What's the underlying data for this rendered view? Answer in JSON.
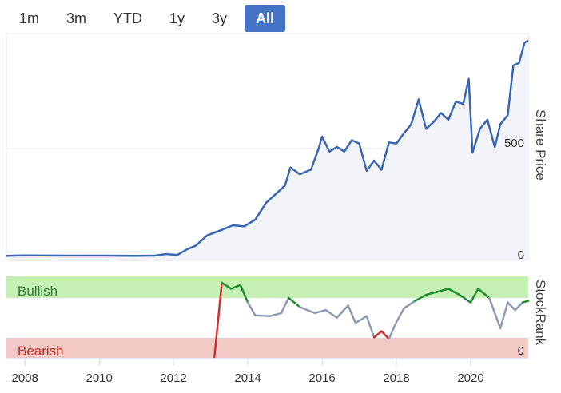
{
  "range_selector": {
    "buttons": [
      "1m",
      "3m",
      "YTD",
      "1y",
      "3y",
      "All"
    ],
    "active": "All"
  },
  "price_chart": {
    "axis_title": "Share Price",
    "ytick_labels": [
      "0",
      "500"
    ],
    "line_color": "#3a66b5",
    "fill_color": "#f3f4fa"
  },
  "rank_chart": {
    "axis_title": "StockRank",
    "bullish_label": "Bullish",
    "bearish_label": "Bearish",
    "ytick_label": "0",
    "bullish_color": "#c6efb4",
    "bearish_color": "#f2c9c5",
    "bull_line_color": "#1f8f2e",
    "neutral_line_color": "#8c9bb5",
    "bear_line_color": "#d32f2f"
  },
  "x_axis": {
    "tick_labels": [
      "2008",
      "2010",
      "2012",
      "2014",
      "2016",
      "2018",
      "2020"
    ]
  },
  "chart_data": [
    {
      "type": "line",
      "ylabel": "Share Price",
      "xlim": [
        2007.5,
        2021.55
      ],
      "ylim": [
        0,
        1000
      ],
      "series": [
        {
          "points": [
            [
              2007.5,
              20
            ],
            [
              2008.0,
              22
            ],
            [
              2009.0,
              21
            ],
            [
              2010.0,
              21
            ],
            [
              2011.0,
              20
            ],
            [
              2011.5,
              21
            ],
            [
              2011.8,
              28
            ],
            [
              2012.1,
              24
            ],
            [
              2012.35,
              48
            ],
            [
              2012.6,
              65
            ],
            [
              2012.9,
              110
            ],
            [
              2013.3,
              135
            ],
            [
              2013.6,
              155
            ],
            [
              2013.9,
              150
            ],
            [
              2014.2,
              180
            ],
            [
              2014.5,
              255
            ],
            [
              2014.8,
              300
            ],
            [
              2015.0,
              330
            ],
            [
              2015.15,
              410
            ],
            [
              2015.4,
              380
            ],
            [
              2015.7,
              400
            ],
            [
              2015.9,
              490
            ],
            [
              2016.0,
              545
            ],
            [
              2016.2,
              480
            ],
            [
              2016.4,
              500
            ],
            [
              2016.6,
              480
            ],
            [
              2016.8,
              530
            ],
            [
              2017.0,
              515
            ],
            [
              2017.2,
              395
            ],
            [
              2017.4,
              440
            ],
            [
              2017.6,
              400
            ],
            [
              2017.8,
              520
            ],
            [
              2018.0,
              515
            ],
            [
              2018.2,
              560
            ],
            [
              2018.4,
              600
            ],
            [
              2018.6,
              710
            ],
            [
              2018.8,
              580
            ],
            [
              2019.0,
              610
            ],
            [
              2019.2,
              650
            ],
            [
              2019.4,
              620
            ],
            [
              2019.6,
              700
            ],
            [
              2019.8,
              690
            ],
            [
              2019.95,
              800
            ],
            [
              2020.05,
              475
            ],
            [
              2020.25,
              580
            ],
            [
              2020.45,
              620
            ],
            [
              2020.65,
              500
            ],
            [
              2020.8,
              600
            ],
            [
              2021.0,
              640
            ],
            [
              2021.15,
              860
            ],
            [
              2021.3,
              870
            ],
            [
              2021.45,
              960
            ],
            [
              2021.55,
              970
            ]
          ]
        }
      ],
      "ytick_labels": [
        "0",
        "500"
      ]
    },
    {
      "type": "line",
      "ylabel": "StockRank",
      "xlim": [
        2007.5,
        2021.55
      ],
      "ylim": [
        0,
        100
      ],
      "series": [
        {
          "points": [
            [
              2013.1,
              0
            ],
            [
              2013.3,
              98
            ],
            [
              2013.55,
              90
            ],
            [
              2013.8,
              95
            ],
            [
              2014.0,
              72
            ],
            [
              2014.2,
              55
            ],
            [
              2014.6,
              54
            ],
            [
              2014.9,
              58
            ],
            [
              2015.1,
              78
            ],
            [
              2015.4,
              66
            ],
            [
              2015.8,
              58
            ],
            [
              2016.1,
              62
            ],
            [
              2016.4,
              52
            ],
            [
              2016.7,
              68
            ],
            [
              2016.9,
              45
            ],
            [
              2017.2,
              54
            ],
            [
              2017.4,
              26
            ],
            [
              2017.6,
              34
            ],
            [
              2017.8,
              24
            ],
            [
              2018.0,
              46
            ],
            [
              2018.2,
              64
            ],
            [
              2018.5,
              74
            ],
            [
              2018.8,
              82
            ],
            [
              2019.1,
              86
            ],
            [
              2019.4,
              90
            ],
            [
              2019.7,
              82
            ],
            [
              2020.0,
              72
            ],
            [
              2020.2,
              90
            ],
            [
              2020.5,
              78
            ],
            [
              2020.8,
              38
            ],
            [
              2021.0,
              72
            ],
            [
              2021.2,
              62
            ],
            [
              2021.4,
              72
            ],
            [
              2021.55,
              74
            ]
          ]
        }
      ]
    }
  ]
}
